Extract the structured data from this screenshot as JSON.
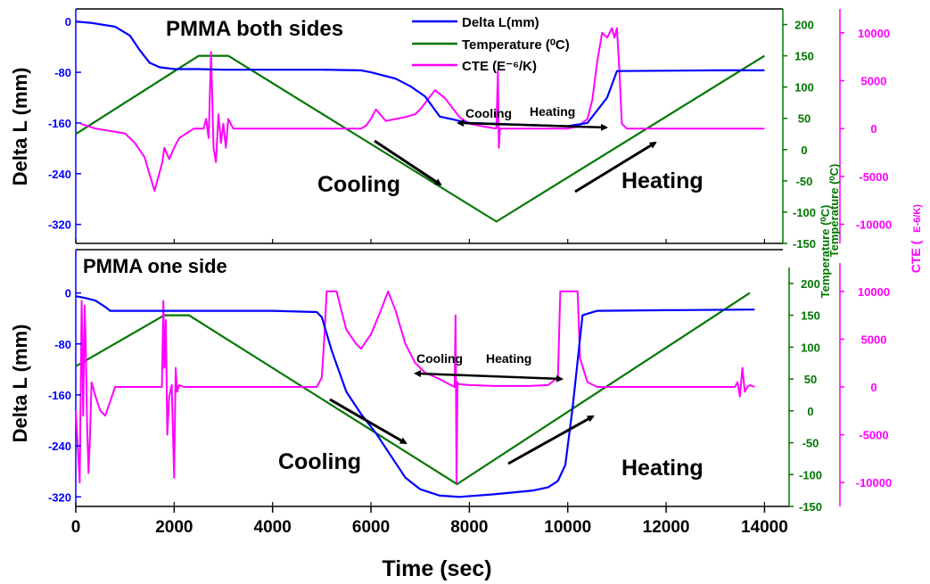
{
  "colors": {
    "delta": "#0000ff",
    "temperature": "#007700",
    "cte": "#ff00ff",
    "arrow": "#000000",
    "axis": "#000000"
  },
  "xaxis": {
    "label": "Time (sec)",
    "range": [
      0,
      14500
    ],
    "ticks": [
      0,
      2000,
      4000,
      6000,
      8000,
      10000,
      12000,
      14000
    ]
  },
  "axis_labels": {
    "delta": "Delta L (mm)",
    "temperature": "Temperature (⁰C)",
    "cte_top": "CTE (",
    "cte_bottom": "E-6/K)"
  },
  "chart_data": [
    {
      "type": "line",
      "panel": "top",
      "title": "PMMA both sides",
      "legend": {
        "placement": "top-center",
        "entries": [
          {
            "key": "delta",
            "label": "Delta L(mm)"
          },
          {
            "key": "temperature",
            "label": "Temperature (⁰C)"
          },
          {
            "key": "cte",
            "label": "CTE (E⁻⁶/K)"
          }
        ]
      },
      "axes": {
        "delta": {
          "range": [
            -350,
            20
          ],
          "ticks": [
            0,
            -80,
            -160,
            -240,
            -320
          ]
        },
        "temperature": {
          "range": [
            -150,
            225
          ],
          "ticks": [
            200,
            150,
            100,
            50,
            0,
            -50,
            -100,
            -150
          ]
        },
        "cte": {
          "range": [
            -12000,
            12500
          ],
          "ticks": [
            10000,
            5000,
            0,
            -5000,
            -10000
          ]
        }
      },
      "series": [
        {
          "key": "delta",
          "x": [
            0,
            300,
            800,
            1100,
            1300,
            1500,
            1700,
            2000,
            2500,
            3000,
            5000,
            5800,
            6000,
            6500,
            6800,
            7100,
            7400,
            8000,
            10000,
            10400,
            10800,
            11000,
            13000,
            14000
          ],
          "y": [
            0,
            -2,
            -8,
            -22,
            -45,
            -65,
            -72,
            -75,
            -75,
            -76,
            -76,
            -77,
            -80,
            -90,
            -102,
            -118,
            -150,
            -160,
            -165,
            -160,
            -120,
            -78,
            -77,
            -77
          ]
        },
        {
          "key": "temperature",
          "x": [
            0,
            2500,
            3100,
            8550,
            14000
          ],
          "y": [
            25,
            150,
            150,
            -115,
            150
          ]
        },
        {
          "key": "cte",
          "x": [
            100,
            400,
            1000,
            1200,
            1400,
            1500,
            1600,
            1680,
            1760,
            1800,
            1900,
            2000,
            2100,
            2400,
            2600,
            2650,
            2700,
            2750,
            2800,
            2850,
            2900,
            2950,
            3000,
            3050,
            3100,
            3200,
            5800,
            5900,
            6000,
            6100,
            6300,
            6700,
            6900,
            7000,
            7150,
            7300,
            7500,
            7800,
            8000,
            8300,
            8550,
            8580,
            8600,
            8620,
            8700,
            9500,
            10000,
            10200,
            10400,
            10500,
            10600,
            10700,
            10800,
            10900,
            10950,
            11000,
            11050,
            11100,
            11200,
            11400,
            12000,
            14000
          ],
          "y": [
            500,
            0,
            -500,
            -1500,
            -3000,
            -4800,
            -6500,
            -5000,
            -3500,
            -2000,
            -3200,
            -2000,
            -1000,
            0,
            0,
            1000,
            -1000,
            8000,
            -2000,
            -3500,
            1500,
            -1500,
            500,
            -2000,
            1000,
            0,
            0,
            300,
            1000,
            2000,
            800,
            1200,
            1500,
            2000,
            3000,
            4000,
            3200,
            1200,
            500,
            200,
            0,
            6000,
            -2000,
            0,
            0,
            0,
            0,
            200,
            1000,
            3000,
            7000,
            10000,
            9500,
            10500,
            9500,
            10500,
            6000,
            500,
            0,
            0,
            0,
            0
          ]
        }
      ],
      "annotations": {
        "cooling_big": "Cooling",
        "heating_big": "Heating",
        "cooling_small": "Cooling",
        "heating_small": "Heating"
      }
    },
    {
      "type": "line",
      "panel": "bottom",
      "title": "PMMA one side",
      "axes": {
        "delta": {
          "range": [
            -335,
            40
          ],
          "ticks": [
            0,
            -80,
            -160,
            -240,
            -320
          ]
        },
        "temperature": {
          "range": [
            -150,
            225
          ],
          "ticks": [
            200,
            150,
            100,
            50,
            0,
            -50,
            -100,
            -150
          ]
        },
        "cte": {
          "range": [
            -12500,
            12500
          ],
          "ticks": [
            10000,
            5000,
            0,
            -5000,
            -10000
          ]
        }
      },
      "series": [
        {
          "key": "delta",
          "x": [
            0,
            200,
            400,
            600,
            700,
            1000,
            2000,
            4000,
            4900,
            5000,
            5200,
            5500,
            5800,
            6100,
            6400,
            6700,
            7000,
            7400,
            7800,
            8500,
            9300,
            9600,
            9800,
            9950,
            10100,
            10300,
            10600,
            12000,
            13800
          ],
          "y": [
            -5,
            -8,
            -12,
            -22,
            -28,
            -28,
            -28,
            -28,
            -30,
            -38,
            -90,
            -155,
            -190,
            -220,
            -255,
            -290,
            -308,
            -318,
            -320,
            -316,
            -310,
            -305,
            -295,
            -270,
            -180,
            -35,
            -28,
            -27,
            -26
          ]
        },
        {
          "key": "temperature",
          "x": [
            0,
            1800,
            2300,
            7750,
            13700
          ],
          "y": [
            70,
            150,
            150,
            -115,
            185
          ]
        },
        {
          "key": "cte",
          "x": [
            0,
            80,
            120,
            150,
            180,
            200,
            230,
            260,
            290,
            320,
            350,
            400,
            500,
            600,
            700,
            800,
            1000,
            1500,
            1750,
            1780,
            1800,
            1830,
            1860,
            1900,
            1950,
            2000,
            2030,
            2060,
            2100,
            2200,
            4900,
            5000,
            5050,
            5100,
            5300,
            5500,
            5700,
            5800,
            6000,
            6200,
            6350,
            6500,
            6700,
            6900,
            7100,
            7400,
            7700,
            7720,
            7740,
            7760,
            7780,
            8000,
            8500,
            9200,
            9600,
            9800,
            9850,
            10200,
            10250,
            10400,
            10600,
            12000,
            13400,
            13450,
            13500,
            13550,
            13600,
            13650,
            13700,
            13800
          ],
          "y": [
            -2500,
            -10000,
            9000,
            -3000,
            8500,
            5000,
            -4000,
            -9000,
            -5000,
            500,
            0,
            -1000,
            -2500,
            -3000,
            -1500,
            0,
            0,
            0,
            0,
            9000,
            2000,
            7000,
            -5000,
            -1000,
            200,
            -9500,
            2000,
            -500,
            200,
            0,
            0,
            1000,
            5000,
            10000,
            10000,
            6000,
            4500,
            4000,
            5500,
            8000,
            10000,
            8000,
            4500,
            2500,
            1500,
            800,
            0,
            7500,
            -10000,
            500,
            300,
            200,
            100,
            100,
            200,
            1000,
            10000,
            10000,
            3000,
            500,
            0,
            0,
            0,
            500,
            -1000,
            2000,
            -500,
            0,
            200,
            0
          ]
        }
      ],
      "annotations": {
        "cooling_big": "Cooling",
        "heating_big": "Heating",
        "cooling_small": "Cooling",
        "heating_small": "Heating"
      }
    }
  ]
}
